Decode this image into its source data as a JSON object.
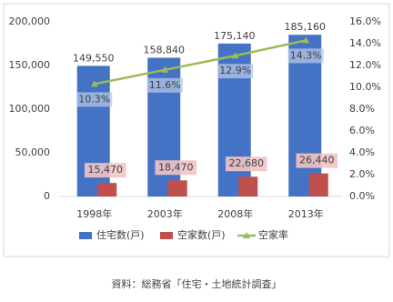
{
  "chart_data": {
    "type": "combo",
    "categories": [
      "1998年",
      "2003年",
      "2008年",
      "2013年"
    ],
    "series": [
      {
        "name": "住宅数(戸)",
        "type": "bar",
        "color": "#4472c4",
        "values": [
          149550,
          158840,
          175140,
          185160
        ],
        "value_labels": [
          "149,550",
          "158,840",
          "175,140",
          "185,160"
        ]
      },
      {
        "name": "空家数(戸)",
        "type": "bar",
        "color": "#c0504d",
        "values": [
          15470,
          18470,
          22680,
          26440
        ],
        "value_labels": [
          "15,470",
          "18,470",
          "22,680",
          "26,440"
        ]
      },
      {
        "name": "空家率",
        "type": "line",
        "axis": "y2",
        "color": "#9bbb59",
        "values": [
          10.3,
          11.6,
          12.9,
          14.3
        ],
        "value_labels": [
          "10.3%",
          "11.6%",
          "12.9%",
          "14.3%"
        ]
      }
    ],
    "ylim": [
      0,
      200000
    ],
    "yticks": [
      0,
      {
        "value": 50000,
        "label": "50,000"
      },
      {
        "value": 100000,
        "label": "100,000"
      },
      {
        "value": 150000,
        "label": "150,000"
      },
      {
        "value": 200000,
        "label": "200,000"
      }
    ],
    "y2lim": [
      0,
      16
    ],
    "y2ticks": [
      {
        "value": 0,
        "label": "0.0%"
      },
      {
        "value": 2,
        "label": "2.0%"
      },
      {
        "value": 4,
        "label": "4.0%"
      },
      {
        "value": 6,
        "label": "6.0%"
      },
      {
        "value": 8,
        "label": "8.0%"
      },
      {
        "value": 10,
        "label": "10.0%"
      },
      {
        "value": 12,
        "label": "12.0%"
      },
      {
        "value": 14,
        "label": "14.0%"
      },
      {
        "value": 16,
        "label": "16.0%"
      }
    ],
    "grid": false,
    "legend": "bottom",
    "source": "資料：総務省「住宅・土地統計調査」"
  }
}
